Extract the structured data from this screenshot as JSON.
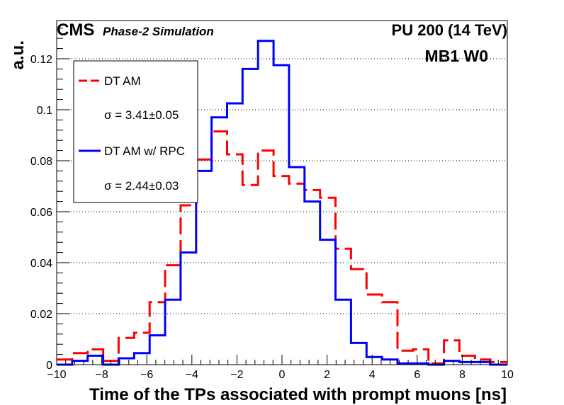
{
  "chart_data": {
    "type": "histogram",
    "xlabel": "Time of the TPs associated with prompt muons [ns]",
    "ylabel": "a.u.",
    "xlim": [
      -10,
      10
    ],
    "ylim": [
      0,
      0.135
    ],
    "x_ticks": [
      -10,
      -8,
      -6,
      -4,
      -2,
      0,
      2,
      4,
      6,
      8,
      10
    ],
    "x_tick_labels": [
      "−10",
      "−8",
      "−6",
      "−4",
      "−2",
      "0",
      "2",
      "4",
      "6",
      "8",
      "10"
    ],
    "y_ticks": [
      0,
      0.02,
      0.04,
      0.06,
      0.08,
      0.1,
      0.12
    ],
    "y_tick_labels": [
      "0",
      "0.02",
      "0.04",
      "0.06",
      "0.08",
      "0.1",
      "0.12"
    ],
    "grid": "horizontal dotted",
    "bin_edges": [
      -10,
      -9.3125,
      -8.625,
      -7.9375,
      -7.25,
      -6.5625,
      -5.875,
      -5.1875,
      -4.5,
      -3.8125,
      -3.125,
      -2.4375,
      -1.75,
      -1.0625,
      -0.375,
      0.3125,
      1.0,
      1.6875,
      2.375,
      3.0625,
      3.75,
      4.4375,
      5.125,
      5.8125,
      6.5,
      7.1875,
      7.875,
      8.5625,
      9.25,
      10
    ],
    "series": [
      {
        "name": "DT AM",
        "color": "#ff0000",
        "style": "dashed",
        "values": [
          0.002,
          0.0045,
          0.006,
          0.0015,
          0.0105,
          0.0125,
          0.0245,
          0.039,
          0.0625,
          0.0805,
          0.0915,
          0.0825,
          0.0705,
          0.084,
          0.074,
          0.071,
          0.0685,
          0.0655,
          0.0455,
          0.0375,
          0.0275,
          0.0245,
          0.0055,
          0.006,
          0.0005,
          0.0095,
          0.0035,
          0.002,
          0.001
        ]
      },
      {
        "name": "DT AM w/ RPC",
        "color": "#0000ff",
        "style": "solid",
        "values": [
          0,
          0.0015,
          0.0035,
          0.0,
          0.0025,
          0.0045,
          0.0115,
          0.0255,
          0.044,
          0.076,
          0.097,
          0.1025,
          0.116,
          0.127,
          0.1175,
          0.0775,
          0.064,
          0.049,
          0.0255,
          0.0085,
          0.003,
          0.002,
          0.0005,
          0.0005,
          0.0,
          0.0015,
          0.001,
          0.001,
          0
        ]
      }
    ],
    "legend": {
      "placement": "top-left",
      "entries": [
        {
          "label": "DT AM",
          "color": "#ff0000",
          "style": "dashed"
        },
        {
          "label": "σ = 3.41±0.05",
          "marker": "none"
        },
        {
          "label": "DT AM w/ RPC",
          "color": "#0000ff",
          "style": "solid"
        },
        {
          "label": "σ = 2.44±0.03",
          "marker": "none"
        }
      ]
    },
    "annotations": {
      "cms": "CMS",
      "cms_sub": "Phase-2 Simulation",
      "lumi": "PU 200 (14 TeV)",
      "region": "MB1 W0"
    }
  }
}
